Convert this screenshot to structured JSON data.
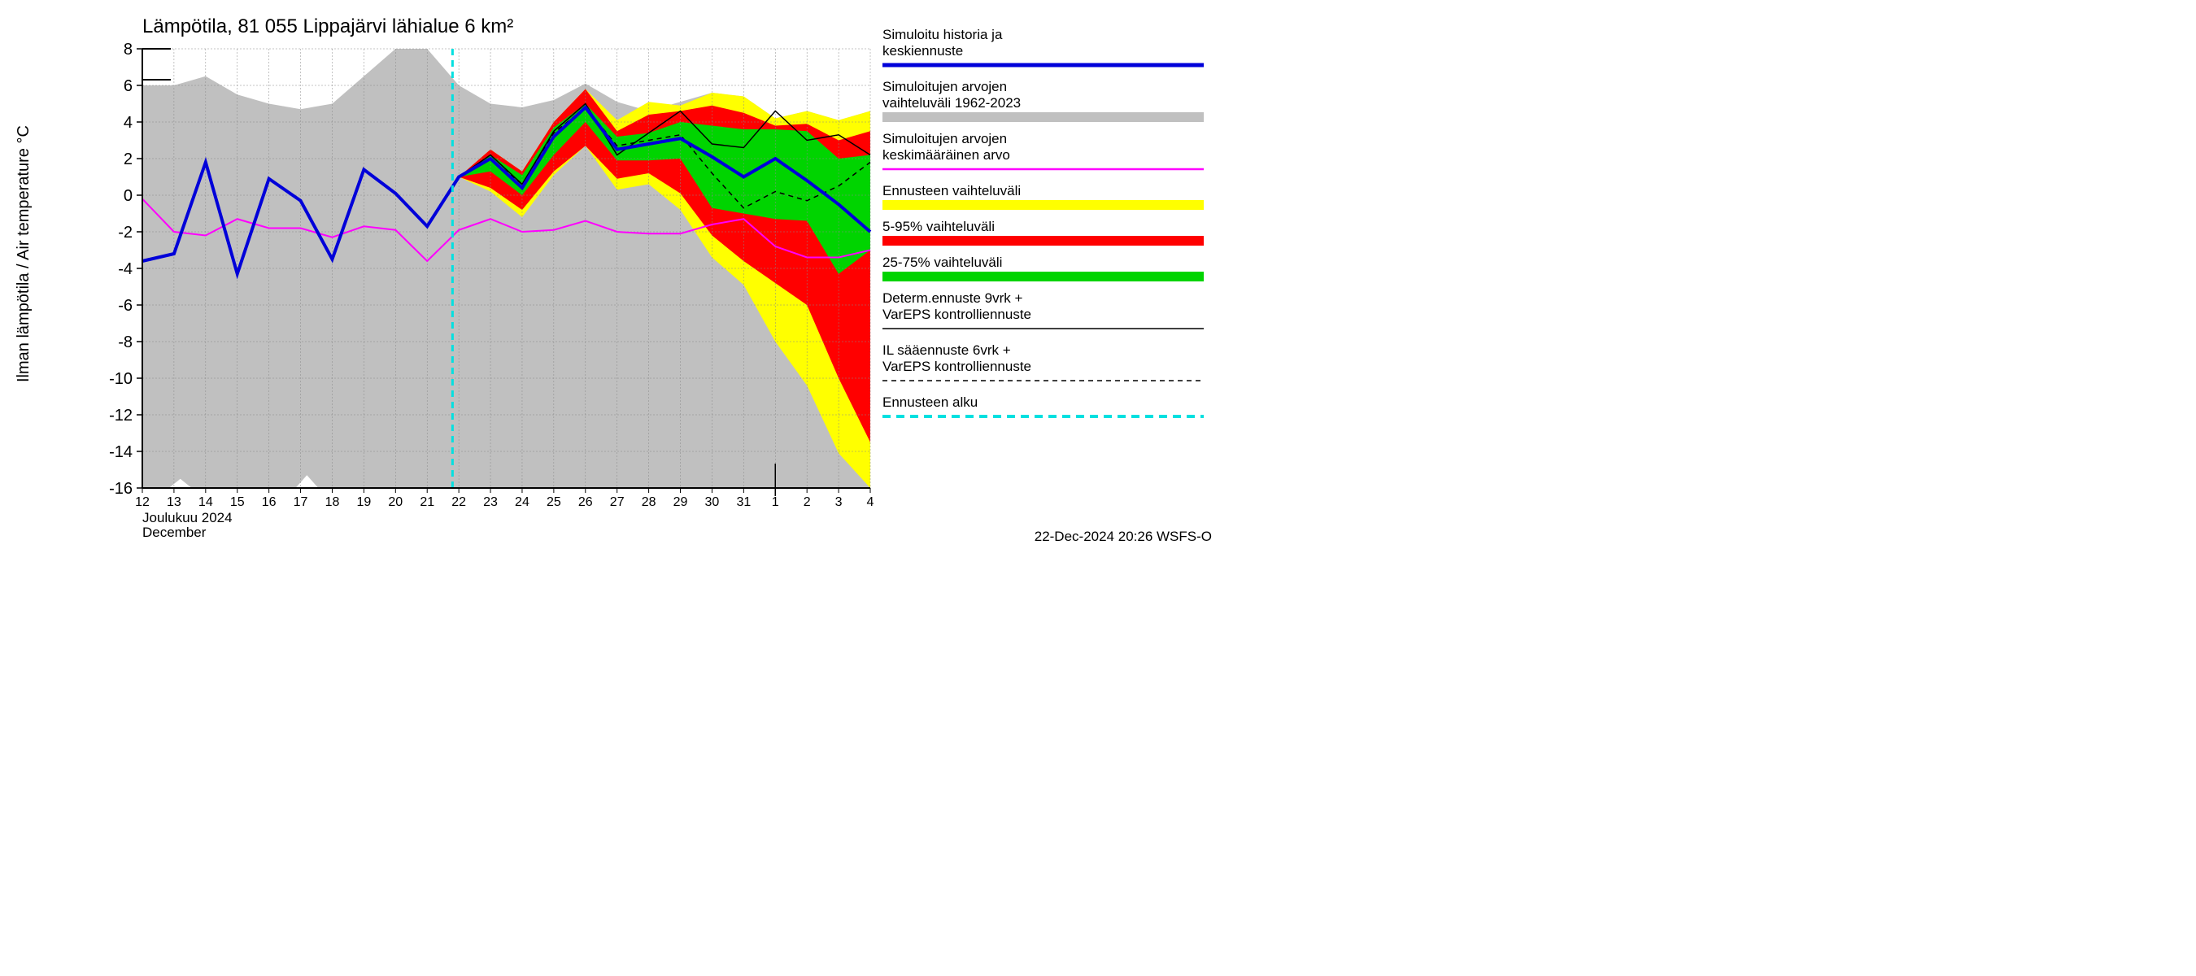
{
  "chart": {
    "type": "line-area-ensemble",
    "title": "Lämpötila, 81 055 Lippajärvi lähialue 6 km²",
    "y_axis_label": "Ilman lämpötila / Air temperature    °C",
    "month_label_fi": "Joulukuu  2024",
    "month_label_en": "December",
    "footer": "22-Dec-2024 20:26 WSFS-O",
    "title_fontsize": 24,
    "axis_label_fontsize": 20,
    "tick_fontsize": 20,
    "x_tick_fontsize": 16,
    "legend_fontsize": 17,
    "background_color": "#ffffff",
    "grid_color": "#888888",
    "grid_width": 0.5,
    "y": {
      "min": -16,
      "max": 8,
      "ticks": [
        8,
        6,
        4,
        2,
        0,
        -2,
        -4,
        -6,
        -8,
        -10,
        -12,
        -14,
        -16
      ]
    },
    "x": {
      "days": [
        "12",
        "13",
        "14",
        "15",
        "16",
        "17",
        "18",
        "19",
        "20",
        "21",
        "22",
        "23",
        "24",
        "25",
        "26",
        "27",
        "28",
        "29",
        "30",
        "31",
        "1",
        "2",
        "3",
        "4"
      ],
      "month_break_index": 20,
      "forecast_start_index": 9.8
    },
    "colors": {
      "hist_band": "#c0c0c0",
      "yellow_band": "#ffff00",
      "red_band": "#ff0000",
      "green_band": "#00d400",
      "blue_line": "#0000d9",
      "magenta_line": "#ff00ff",
      "black_line": "#000000",
      "cyan_dash": "#00e0e0"
    },
    "line_widths": {
      "blue": 4,
      "magenta": 2,
      "black_solid": 1.5,
      "black_dash": 1.5,
      "cyan": 3
    },
    "hist_band_upper": [
      6,
      6,
      6.5,
      5.5,
      5,
      4.7,
      5,
      6.5,
      8,
      8,
      6,
      5,
      4.8,
      5.2,
      6.1,
      5.1,
      4.6,
      5.1,
      5.6,
      5.4,
      4.2,
      4.6,
      4.1,
      4.6
    ],
    "hist_band_lower": [
      -16,
      -16,
      -16,
      -16,
      -16,
      -16,
      -16,
      -16,
      -16,
      -16,
      -16,
      -16,
      -16,
      -16,
      -16,
      -16,
      -16,
      -16,
      -16,
      -16,
      -16,
      -16,
      -16,
      -16
    ],
    "yellow_upper": [
      null,
      null,
      null,
      null,
      null,
      null,
      null,
      null,
      null,
      null,
      1,
      2.5,
      1.3,
      4.0,
      5.8,
      4.1,
      5.1,
      4.9,
      5.6,
      5.4,
      4.2,
      4.6,
      4.1,
      4.6
    ],
    "yellow_lower": [
      null,
      null,
      null,
      null,
      null,
      null,
      null,
      null,
      null,
      null,
      1,
      0.2,
      -1.2,
      1.1,
      2.7,
      0.3,
      0.6,
      -0.8,
      -3.4,
      -4.9,
      -8.0,
      -10.4,
      -14.1,
      -16
    ],
    "red_upper": [
      null,
      null,
      null,
      null,
      null,
      null,
      null,
      null,
      null,
      null,
      1,
      2.5,
      1.3,
      4.0,
      5.8,
      3.5,
      4.4,
      4.6,
      4.9,
      4.5,
      3.8,
      3.9,
      3.0,
      3.5
    ],
    "red_lower": [
      null,
      null,
      null,
      null,
      null,
      null,
      null,
      null,
      null,
      null,
      1,
      0.4,
      -0.8,
      1.3,
      2.7,
      0.9,
      1.2,
      0.1,
      -2.2,
      -3.6,
      -4.8,
      -6.0,
      -10.0,
      -13.5
    ],
    "green_upper": [
      null,
      null,
      null,
      null,
      null,
      null,
      null,
      null,
      null,
      null,
      1,
      2.2,
      1.1,
      3.7,
      5.0,
      3.2,
      3.4,
      4.0,
      3.8,
      3.6,
      3.6,
      3.5,
      2.0,
      2.2
    ],
    "green_lower": [
      null,
      null,
      null,
      null,
      null,
      null,
      null,
      null,
      null,
      null,
      1,
      1.3,
      0.0,
      2.2,
      4.0,
      1.9,
      1.9,
      2.0,
      -0.7,
      -1.0,
      -1.3,
      -1.4,
      -4.3,
      -3.0
    ],
    "blue_line": [
      -3.6,
      -3.2,
      1.8,
      -4.3,
      0.9,
      -0.3,
      -3.5,
      1.4,
      0.1,
      -1.7,
      1.0,
      2.0,
      0.4,
      3.2,
      4.8,
      2.5,
      2.8,
      3.1,
      2.1,
      1.0,
      2.0,
      0.8,
      -0.5,
      -2.0
    ],
    "magenta_line": [
      -0.2,
      -2.0,
      -2.2,
      -1.3,
      -1.8,
      -1.8,
      -2.3,
      -1.7,
      -1.9,
      -3.6,
      -1.9,
      -1.3,
      -2.0,
      -1.9,
      -1.4,
      -2.0,
      -2.1,
      -2.1,
      -1.6,
      -1.3,
      -2.8,
      -3.4,
      -3.4,
      -3.0
    ],
    "black_solid": [
      null,
      null,
      null,
      null,
      null,
      null,
      null,
      null,
      null,
      null,
      1,
      2.2,
      0.6,
      3.5,
      5.0,
      2.2,
      3.4,
      4.6,
      2.8,
      2.6,
      4.6,
      3.0,
      3.3,
      2.2
    ],
    "black_dash": [
      null,
      null,
      null,
      null,
      null,
      null,
      null,
      null,
      null,
      null,
      1,
      2.0,
      0.6,
      3.4,
      4.8,
      2.7,
      3.0,
      3.3,
      1.2,
      -0.7,
      0.2,
      -0.3,
      0.5,
      1.8
    ],
    "hist_notches": [
      {
        "x": 1.2,
        "depth": -15.5
      },
      {
        "x": 5.2,
        "depth": -15.3
      }
    ]
  },
  "legend": {
    "items": [
      {
        "line1": "Simuloitu historia ja",
        "line2": "keskiennuste",
        "style": "blue-thick"
      },
      {
        "line1": "Simuloitujen arvojen",
        "line2": "vaihteluväli 1962-2023",
        "style": "grey-band"
      },
      {
        "line1": "Simuloitujen arvojen",
        "line2": "keskimääräinen arvo",
        "style": "magenta"
      },
      {
        "line1": "Ennusteen vaihteluväli",
        "line2": "",
        "style": "yellow-band"
      },
      {
        "line1": "5-95% vaihteluväli",
        "line2": "",
        "style": "red-band"
      },
      {
        "line1": "25-75% vaihteluväli",
        "line2": "",
        "style": "green-band"
      },
      {
        "line1": "Determ.ennuste 9vrk +",
        "line2": "VarEPS kontrolliennuste",
        "style": "black-solid"
      },
      {
        "line1": "IL sääennuste 6vrk  +",
        "line2": " VarEPS kontrolliennuste",
        "style": "black-dash"
      },
      {
        "line1": "Ennusteen alku",
        "line2": "",
        "style": "cyan-dash"
      }
    ]
  }
}
